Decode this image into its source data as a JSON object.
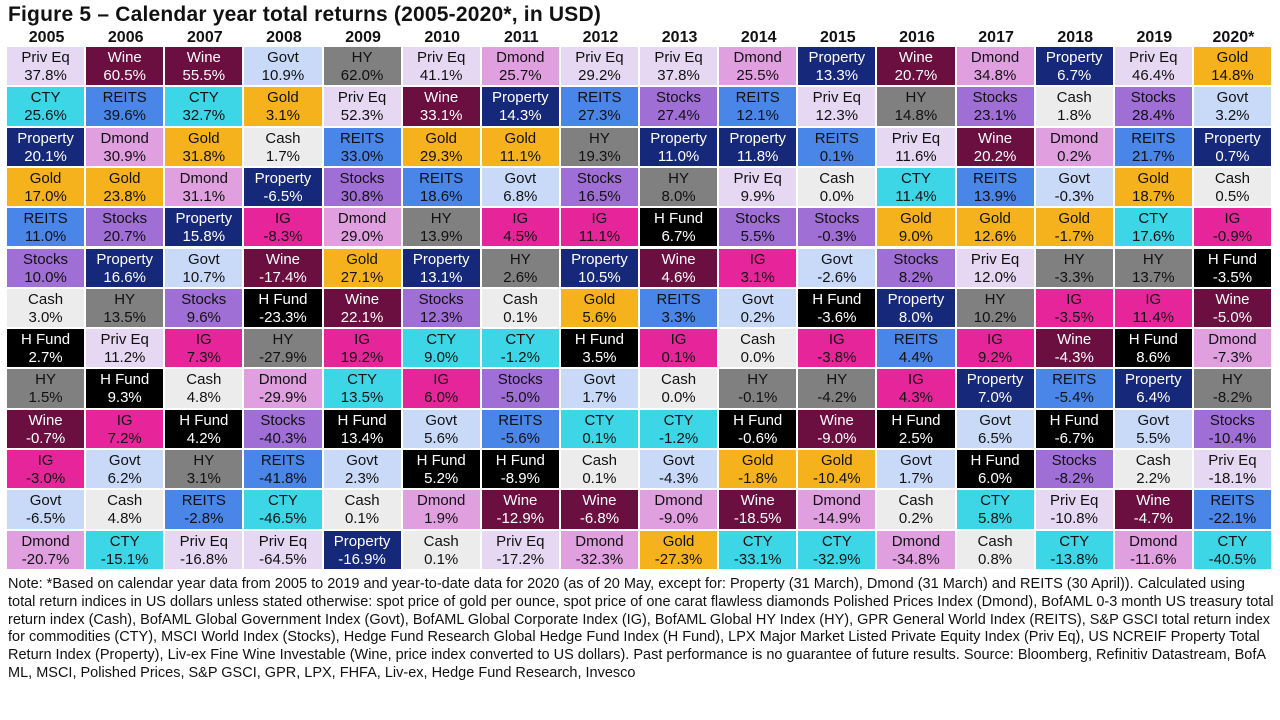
{
  "title": "Figure 5 – Calendar year total returns (2005-2020*, in USD)",
  "note": "Note: *Based on calendar year data from 2005 to 2019 and year-to-date data for 2020 (as of 20 May, except for: Property (31 March), Dmond (31 March) and REITS (30 April)). Calculated using total return indices in US dollars unless stated otherwise: spot price of gold per ounce, spot price of one carat flawless diamonds Polished Prices Index (Dmond), BofAML 0-3 month US treasury total return index (Cash), BofAML Global Government Index (Govt), BofAML Global Corporate Index (IG), BofAML Global HY Index (HY), GPR General World Index (REITS), S&P GSCI total return index for commodities (CTY), MSCI World Index (Stocks), Hedge Fund Research Global Hedge Fund Index (H Fund), LPX Major Market Listed Private Equity Index (Priv Eq), US NCREIF Property Total Return Index (Property), Liv-ex Fine Wine Investable (Wine, price index converted to US dollars). Past performance is no guarantee of future results. Source: Bloomberg, Refinitiv Datastream, BofA ML, MSCI, Polished Prices, S&P GSCI, GPR, LPX, FHFA, Liv-ex, Hedge Fund Research, Invesco",
  "colors": {
    "Priv Eq": {
      "bg": "#e6d8f2",
      "fg": "#111111"
    },
    "Wine": {
      "bg": "#6b0f40",
      "fg": "#ffffff"
    },
    "Govt": {
      "bg": "#c9daf8",
      "fg": "#111111"
    },
    "HY": {
      "bg": "#808080",
      "fg": "#111111"
    },
    "Dmond": {
      "bg": "#e0a0e0",
      "fg": "#111111"
    },
    "Property": {
      "bg": "#16287a",
      "fg": "#ffffff"
    },
    "Gold": {
      "bg": "#f6b21c",
      "fg": "#111111"
    },
    "CTY": {
      "bg": "#3cd6e6",
      "fg": "#111111"
    },
    "REITS": {
      "bg": "#4a86e8",
      "fg": "#111111"
    },
    "Stocks": {
      "bg": "#a06fd6",
      "fg": "#111111"
    },
    "Cash": {
      "bg": "#ececec",
      "fg": "#111111"
    },
    "IG": {
      "bg": "#e7259a",
      "fg": "#111111"
    },
    "H Fund": {
      "bg": "#000000",
      "fg": "#ffffff"
    }
  },
  "chart_data": {
    "type": "table",
    "title": "Figure 5 – Calendar year total returns (2005-2020*, in USD)",
    "years": [
      "2005",
      "2006",
      "2007",
      "2008",
      "2009",
      "2010",
      "2011",
      "2012",
      "2013",
      "2014",
      "2015",
      "2016",
      "2017",
      "2018",
      "2019",
      "2020*"
    ],
    "columns": [
      [
        [
          "Priv Eq",
          "37.8%"
        ],
        [
          "CTY",
          "25.6%"
        ],
        [
          "Property",
          "20.1%"
        ],
        [
          "Gold",
          "17.0%"
        ],
        [
          "REITS",
          "11.0%"
        ],
        [
          "Stocks",
          "10.0%"
        ],
        [
          "Cash",
          "3.0%"
        ],
        [
          "H Fund",
          "2.7%"
        ],
        [
          "HY",
          "1.5%"
        ],
        [
          "Wine",
          "-0.7%"
        ],
        [
          "IG",
          "-3.0%"
        ],
        [
          "Govt",
          "-6.5%"
        ],
        [
          "Dmond",
          "-20.7%"
        ]
      ],
      [
        [
          "Wine",
          "60.5%"
        ],
        [
          "REITS",
          "39.6%"
        ],
        [
          "Dmond",
          "30.9%"
        ],
        [
          "Gold",
          "23.8%"
        ],
        [
          "Stocks",
          "20.7%"
        ],
        [
          "Property",
          "16.6%"
        ],
        [
          "HY",
          "13.5%"
        ],
        [
          "Priv Eq",
          "11.2%"
        ],
        [
          "H Fund",
          "9.3%"
        ],
        [
          "IG",
          "7.2%"
        ],
        [
          "Govt",
          "6.2%"
        ],
        [
          "Cash",
          "4.8%"
        ],
        [
          "CTY",
          "-15.1%"
        ]
      ],
      [
        [
          "Wine",
          "55.5%"
        ],
        [
          "CTY",
          "32.7%"
        ],
        [
          "Gold",
          "31.8%"
        ],
        [
          "Dmond",
          "31.1%"
        ],
        [
          "Property",
          "15.8%"
        ],
        [
          "Govt",
          "10.7%"
        ],
        [
          "Stocks",
          "9.6%"
        ],
        [
          "IG",
          "7.3%"
        ],
        [
          "Cash",
          "4.8%"
        ],
        [
          "H Fund",
          "4.2%"
        ],
        [
          "HY",
          "3.1%"
        ],
        [
          "REITS",
          "-2.8%"
        ],
        [
          "Priv Eq",
          "-16.8%"
        ]
      ],
      [
        [
          "Govt",
          "10.9%"
        ],
        [
          "Gold",
          "3.1%"
        ],
        [
          "Cash",
          "1.7%"
        ],
        [
          "Property",
          "-6.5%"
        ],
        [
          "IG",
          "-8.3%"
        ],
        [
          "Wine",
          "-17.4%"
        ],
        [
          "H Fund",
          "-23.3%"
        ],
        [
          "HY",
          "-27.9%"
        ],
        [
          "Dmond",
          "-29.9%"
        ],
        [
          "Stocks",
          "-40.3%"
        ],
        [
          "REITS",
          "-41.8%"
        ],
        [
          "CTY",
          "-46.5%"
        ],
        [
          "Priv Eq",
          "-64.5%"
        ]
      ],
      [
        [
          "HY",
          "62.0%"
        ],
        [
          "Priv Eq",
          "52.3%"
        ],
        [
          "REITS",
          "33.0%"
        ],
        [
          "Stocks",
          "30.8%"
        ],
        [
          "Dmond",
          "29.0%"
        ],
        [
          "Gold",
          "27.1%"
        ],
        [
          "Wine",
          "22.1%"
        ],
        [
          "IG",
          "19.2%"
        ],
        [
          "CTY",
          "13.5%"
        ],
        [
          "H Fund",
          "13.4%"
        ],
        [
          "Govt",
          "2.3%"
        ],
        [
          "Cash",
          "0.1%"
        ],
        [
          "Property",
          "-16.9%"
        ]
      ],
      [
        [
          "Priv Eq",
          "41.1%"
        ],
        [
          "Wine",
          "33.1%"
        ],
        [
          "Gold",
          "29.3%"
        ],
        [
          "REITS",
          "18.6%"
        ],
        [
          "HY",
          "13.9%"
        ],
        [
          "Property",
          "13.1%"
        ],
        [
          "Stocks",
          "12.3%"
        ],
        [
          "CTY",
          "9.0%"
        ],
        [
          "IG",
          "6.0%"
        ],
        [
          "Govt",
          "5.6%"
        ],
        [
          "H Fund",
          "5.2%"
        ],
        [
          "Dmond",
          "1.9%"
        ],
        [
          "Cash",
          "0.1%"
        ]
      ],
      [
        [
          "Dmond",
          "25.7%"
        ],
        [
          "Property",
          "14.3%"
        ],
        [
          "Gold",
          "11.1%"
        ],
        [
          "Govt",
          "6.8%"
        ],
        [
          "IG",
          "4.5%"
        ],
        [
          "HY",
          "2.6%"
        ],
        [
          "Cash",
          "0.1%"
        ],
        [
          "CTY",
          "-1.2%"
        ],
        [
          "Stocks",
          "-5.0%"
        ],
        [
          "REITS",
          "-5.6%"
        ],
        [
          "H Fund",
          "-8.9%"
        ],
        [
          "Wine",
          "-12.9%"
        ],
        [
          "Priv Eq",
          "-17.2%"
        ]
      ],
      [
        [
          "Priv Eq",
          "29.2%"
        ],
        [
          "REITS",
          "27.3%"
        ],
        [
          "HY",
          "19.3%"
        ],
        [
          "Stocks",
          "16.5%"
        ],
        [
          "IG",
          "11.1%"
        ],
        [
          "Property",
          "10.5%"
        ],
        [
          "Gold",
          "5.6%"
        ],
        [
          "H Fund",
          "3.5%"
        ],
        [
          "Govt",
          "1.7%"
        ],
        [
          "CTY",
          "0.1%"
        ],
        [
          "Cash",
          "0.1%"
        ],
        [
          "Wine",
          "-6.8%"
        ],
        [
          "Dmond",
          "-32.3%"
        ]
      ],
      [
        [
          "Priv Eq",
          "37.8%"
        ],
        [
          "Stocks",
          "27.4%"
        ],
        [
          "Property",
          "11.0%"
        ],
        [
          "HY",
          "8.0%"
        ],
        [
          "H Fund",
          "6.7%"
        ],
        [
          "Wine",
          "4.6%"
        ],
        [
          "REITS",
          "3.3%"
        ],
        [
          "IG",
          "0.1%"
        ],
        [
          "Cash",
          "0.0%"
        ],
        [
          "CTY",
          "-1.2%"
        ],
        [
          "Govt",
          "-4.3%"
        ],
        [
          "Dmond",
          "-9.0%"
        ],
        [
          "Gold",
          "-27.3%"
        ]
      ],
      [
        [
          "Dmond",
          "25.5%"
        ],
        [
          "REITS",
          "12.1%"
        ],
        [
          "Property",
          "11.8%"
        ],
        [
          "Priv Eq",
          "9.9%"
        ],
        [
          "Stocks",
          "5.5%"
        ],
        [
          "IG",
          "3.1%"
        ],
        [
          "Govt",
          "0.2%"
        ],
        [
          "Cash",
          "0.0%"
        ],
        [
          "HY",
          "-0.1%"
        ],
        [
          "H Fund",
          "-0.6%"
        ],
        [
          "Gold",
          "-1.8%"
        ],
        [
          "Wine",
          "-18.5%"
        ],
        [
          "CTY",
          "-33.1%"
        ]
      ],
      [
        [
          "Property",
          "13.3%"
        ],
        [
          "Priv Eq",
          "12.3%"
        ],
        [
          "REITS",
          "0.1%"
        ],
        [
          "Cash",
          "0.0%"
        ],
        [
          "Stocks",
          "-0.3%"
        ],
        [
          "Govt",
          "-2.6%"
        ],
        [
          "H Fund",
          "-3.6%"
        ],
        [
          "IG",
          "-3.8%"
        ],
        [
          "HY",
          "-4.2%"
        ],
        [
          "Wine",
          "-9.0%"
        ],
        [
          "Gold",
          "-10.4%"
        ],
        [
          "Dmond",
          "-14.9%"
        ],
        [
          "CTY",
          "-32.9%"
        ]
      ],
      [
        [
          "Wine",
          "20.7%"
        ],
        [
          "HY",
          "14.8%"
        ],
        [
          "Priv Eq",
          "11.6%"
        ],
        [
          "CTY",
          "11.4%"
        ],
        [
          "Gold",
          "9.0%"
        ],
        [
          "Stocks",
          "8.2%"
        ],
        [
          "Property",
          "8.0%"
        ],
        [
          "REITS",
          "4.4%"
        ],
        [
          "IG",
          "4.3%"
        ],
        [
          "H Fund",
          "2.5%"
        ],
        [
          "Govt",
          "1.7%"
        ],
        [
          "Cash",
          "0.2%"
        ],
        [
          "Dmond",
          "-34.8%"
        ]
      ],
      [
        [
          "Dmond",
          "34.8%"
        ],
        [
          "Stocks",
          "23.1%"
        ],
        [
          "Wine",
          "20.2%"
        ],
        [
          "REITS",
          "13.9%"
        ],
        [
          "Gold",
          "12.6%"
        ],
        [
          "Priv Eq",
          "12.0%"
        ],
        [
          "HY",
          "10.2%"
        ],
        [
          "IG",
          "9.2%"
        ],
        [
          "Property",
          "7.0%"
        ],
        [
          "Govt",
          "6.5%"
        ],
        [
          "H Fund",
          "6.0%"
        ],
        [
          "CTY",
          "5.8%"
        ],
        [
          "Cash",
          "0.8%"
        ]
      ],
      [
        [
          "Property",
          "6.7%"
        ],
        [
          "Cash",
          "1.8%"
        ],
        [
          "Dmond",
          "0.2%"
        ],
        [
          "Govt",
          "-0.3%"
        ],
        [
          "Gold",
          "-1.7%"
        ],
        [
          "HY",
          "-3.3%"
        ],
        [
          "IG",
          "-3.5%"
        ],
        [
          "Wine",
          "-4.3%"
        ],
        [
          "REITS",
          "-5.4%"
        ],
        [
          "H Fund",
          "-6.7%"
        ],
        [
          "Stocks",
          "-8.2%"
        ],
        [
          "Priv Eq",
          "-10.8%"
        ],
        [
          "CTY",
          "-13.8%"
        ]
      ],
      [
        [
          "Priv Eq",
          "46.4%"
        ],
        [
          "Stocks",
          "28.4%"
        ],
        [
          "REITS",
          "21.7%"
        ],
        [
          "Gold",
          "18.7%"
        ],
        [
          "CTY",
          "17.6%"
        ],
        [
          "HY",
          "13.7%"
        ],
        [
          "IG",
          "11.4%"
        ],
        [
          "H Fund",
          "8.6%"
        ],
        [
          "Property",
          "6.4%"
        ],
        [
          "Govt",
          "5.5%"
        ],
        [
          "Cash",
          "2.2%"
        ],
        [
          "Wine",
          "-4.7%"
        ],
        [
          "Dmond",
          "-11.6%"
        ]
      ],
      [
        [
          "Gold",
          "14.8%"
        ],
        [
          "Govt",
          "3.2%"
        ],
        [
          "Property",
          "0.7%"
        ],
        [
          "Cash",
          "0.5%"
        ],
        [
          "IG",
          "-0.9%"
        ],
        [
          "H Fund",
          "-3.5%"
        ],
        [
          "Wine",
          "-5.0%"
        ],
        [
          "Dmond",
          "-7.3%"
        ],
        [
          "HY",
          "-8.2%"
        ],
        [
          "Stocks",
          "-10.4%"
        ],
        [
          "Priv Eq",
          "-18.1%"
        ],
        [
          "REITS",
          "-22.1%"
        ],
        [
          "CTY",
          "-40.5%"
        ]
      ]
    ]
  }
}
